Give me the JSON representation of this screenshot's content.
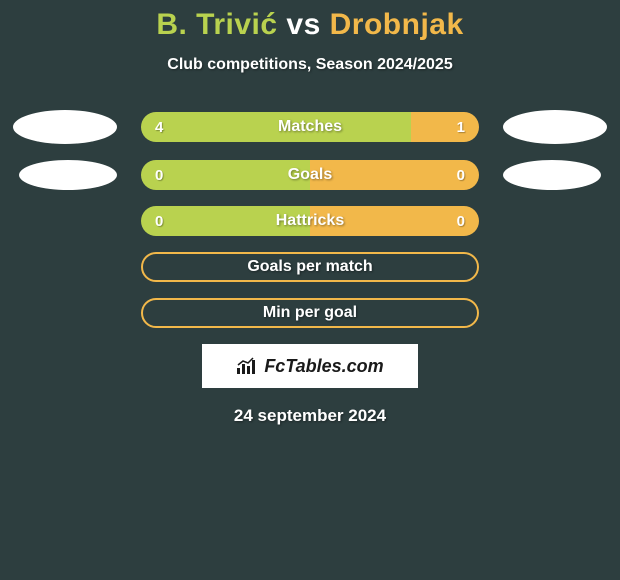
{
  "title": {
    "player1": "B. Trivić",
    "vs": "vs",
    "player2": "Drobnjak"
  },
  "subtitle": "Club competitions, Season 2024/2025",
  "colors": {
    "player1": "#b9d24f",
    "player2": "#f2b84a",
    "background": "#2d3e3f",
    "text": "#ffffff"
  },
  "stats": [
    {
      "label": "Matches",
      "left_value": "4",
      "right_value": "1",
      "left_pct": 80,
      "right_pct": 20,
      "left_fill": "#b9d24f",
      "right_fill": "#f2b84a",
      "show_photos": true,
      "photo_size": "normal"
    },
    {
      "label": "Goals",
      "left_value": "0",
      "right_value": "0",
      "left_pct": 50,
      "right_pct": 50,
      "left_fill": "#b9d24f",
      "right_fill": "#f2b84a",
      "show_photos": true,
      "photo_size": "small"
    },
    {
      "label": "Hattricks",
      "left_value": "0",
      "right_value": "0",
      "left_pct": 50,
      "right_pct": 50,
      "left_fill": "#b9d24f",
      "right_fill": "#f2b84a",
      "show_photos": false
    }
  ],
  "empty_stats": [
    {
      "label": "Goals per match",
      "border_color": "#f2b84a"
    },
    {
      "label": "Min per goal",
      "border_color": "#f2b84a"
    }
  ],
  "branding": "FcTables.com",
  "date": "24 september 2024"
}
